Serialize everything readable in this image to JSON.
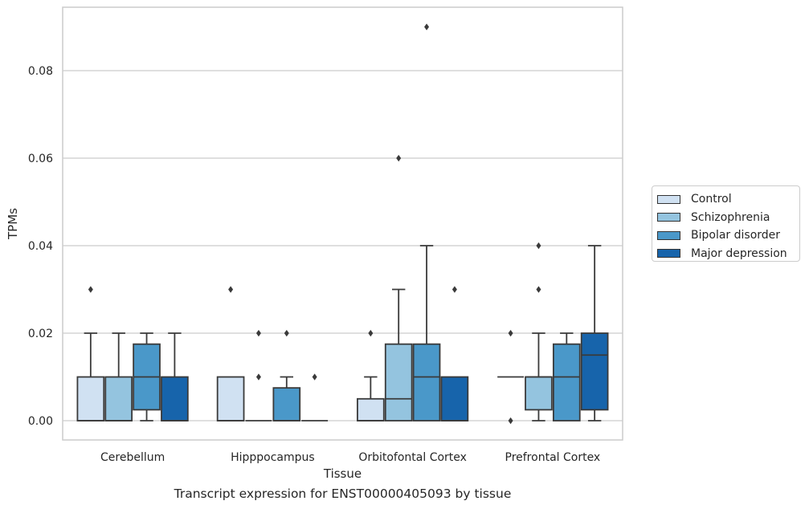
{
  "caption": "Transcript expression for ENST00000405093 by tissue",
  "chart_data": {
    "type": "box",
    "xlabel": "Tissue",
    "ylabel": "TPMs",
    "ylim": [
      -0.0044,
      0.0945
    ],
    "yticks": [
      "0.00",
      "0.02",
      "0.04",
      "0.06",
      "0.08"
    ],
    "ytick_values": [
      0,
      0.02,
      0.04,
      0.06,
      0.08
    ],
    "grid": true,
    "legend_position": "right",
    "categories": [
      "Cerebellum",
      "Hipppocampus",
      "Orbitofontal Cortex",
      "Prefrontal Cortex"
    ],
    "series": [
      {
        "name": "Control",
        "color": "#d0e1f2",
        "boxes": [
          {
            "q1": 0,
            "median": 0,
            "q3": 0.01,
            "whislo": 0,
            "whishi": 0.02,
            "fliers": [
              0.03
            ]
          },
          {
            "q1": 0,
            "median": 0,
            "q3": 0.01,
            "whislo": 0,
            "whishi": 0.01,
            "fliers": [
              0.03
            ]
          },
          {
            "q1": 0,
            "median": 0,
            "q3": 0.005,
            "whislo": 0,
            "whishi": 0.01,
            "fliers": [
              0.02
            ]
          },
          {
            "q1": 0.01,
            "median": 0.01,
            "q3": 0.01,
            "whislo": 0.01,
            "whishi": 0.01,
            "fliers": [
              0,
              0.02
            ]
          }
        ]
      },
      {
        "name": "Schizophrenia",
        "color": "#94c4df",
        "boxes": [
          {
            "q1": 0,
            "median": 0,
            "q3": 0.01,
            "whislo": 0,
            "whishi": 0.02,
            "fliers": []
          },
          {
            "q1": 0,
            "median": 0,
            "q3": 0,
            "whislo": 0,
            "whishi": 0,
            "fliers": [
              0.01,
              0.02
            ]
          },
          {
            "q1": 0,
            "median": 0.005,
            "q3": 0.0175,
            "whislo": 0,
            "whishi": 0.03,
            "fliers": [
              0.06
            ]
          },
          {
            "q1": 0.0025,
            "median": 0.01,
            "q3": 0.01,
            "whislo": 0,
            "whishi": 0.02,
            "fliers": [
              0.03,
              0.04
            ]
          }
        ]
      },
      {
        "name": "Bipolar disorder",
        "color": "#4a98c9",
        "boxes": [
          {
            "q1": 0.0025,
            "median": 0.01,
            "q3": 0.0175,
            "whislo": 0,
            "whishi": 0.02,
            "fliers": []
          },
          {
            "q1": 0,
            "median": 0,
            "q3": 0.0075,
            "whislo": 0,
            "whishi": 0.01,
            "fliers": [
              0.02
            ]
          },
          {
            "q1": 0,
            "median": 0.01,
            "q3": 0.0175,
            "whislo": 0,
            "whishi": 0.04,
            "fliers": [
              0.09
            ]
          },
          {
            "q1": 0,
            "median": 0.01,
            "q3": 0.0175,
            "whislo": 0,
            "whishi": 0.02,
            "fliers": []
          }
        ]
      },
      {
        "name": "Major depression",
        "color": "#1764ab",
        "boxes": [
          {
            "q1": 0,
            "median": 0,
            "q3": 0.01,
            "whislo": 0,
            "whishi": 0.02,
            "fliers": []
          },
          {
            "q1": 0,
            "median": 0,
            "q3": 0,
            "whislo": 0,
            "whishi": 0,
            "fliers": [
              0.01
            ]
          },
          {
            "q1": 0,
            "median": 0,
            "q3": 0.01,
            "whislo": 0,
            "whishi": 0.01,
            "fliers": [
              0.03
            ]
          },
          {
            "q1": 0.0025,
            "median": 0.015,
            "q3": 0.02,
            "whislo": 0,
            "whishi": 0.04,
            "fliers": []
          }
        ]
      }
    ]
  }
}
